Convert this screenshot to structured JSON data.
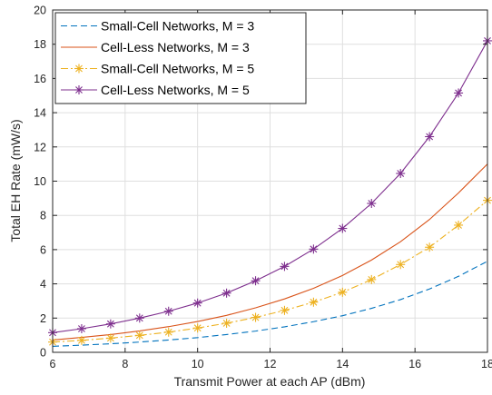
{
  "chart_data": {
    "type": "line",
    "title": "",
    "xlabel": "Transmit Power at each AP (dBm)",
    "ylabel": "Total EH Rate (mW/s)",
    "xlim": [
      6,
      18
    ],
    "ylim": [
      0,
      20
    ],
    "xticks": [
      6,
      8,
      10,
      12,
      14,
      16,
      18
    ],
    "yticks": [
      0,
      2,
      4,
      6,
      8,
      10,
      12,
      14,
      16,
      18,
      20
    ],
    "grid": true,
    "legend_position": "top-left",
    "x": [
      6,
      6.8,
      7.6,
      8.4,
      9.2,
      10,
      10.8,
      11.6,
      12.4,
      13.2,
      14,
      14.8,
      15.6,
      16.4,
      17.2,
      18
    ],
    "series": [
      {
        "name": "Small-Cell Networks, M = 3",
        "color": "#0072BD",
        "line_style": "dashed",
        "marker": "none",
        "values": [
          0.35,
          0.42,
          0.5,
          0.6,
          0.72,
          0.86,
          1.04,
          1.24,
          1.49,
          1.79,
          2.14,
          2.57,
          3.08,
          3.7,
          4.44,
          5.32
        ]
      },
      {
        "name": "Cell-Less Networks, M = 3",
        "color": "#D95319",
        "line_style": "solid",
        "marker": "none",
        "values": [
          0.72,
          0.87,
          1.04,
          1.25,
          1.5,
          1.8,
          2.16,
          2.6,
          3.12,
          3.74,
          4.49,
          5.39,
          6.46,
          7.76,
          9.31,
          11.0
        ]
      },
      {
        "name": "Small-Cell Networks, M = 5",
        "color": "#EDB120",
        "line_style": "dashdot",
        "marker": "asterisk",
        "values": [
          0.6,
          0.7,
          0.83,
          0.99,
          1.18,
          1.42,
          1.7,
          2.04,
          2.45,
          2.93,
          3.51,
          4.25,
          5.13,
          6.14,
          7.43,
          8.88
        ]
      },
      {
        "name": "Cell-Less Networks, M = 5",
        "color": "#7E2F8E",
        "line_style": "solid",
        "marker": "asterisk",
        "values": [
          1.15,
          1.38,
          1.66,
          2.0,
          2.4,
          2.88,
          3.46,
          4.18,
          5.02,
          6.03,
          7.24,
          8.7,
          10.45,
          12.6,
          15.15,
          18.2
        ]
      }
    ]
  }
}
